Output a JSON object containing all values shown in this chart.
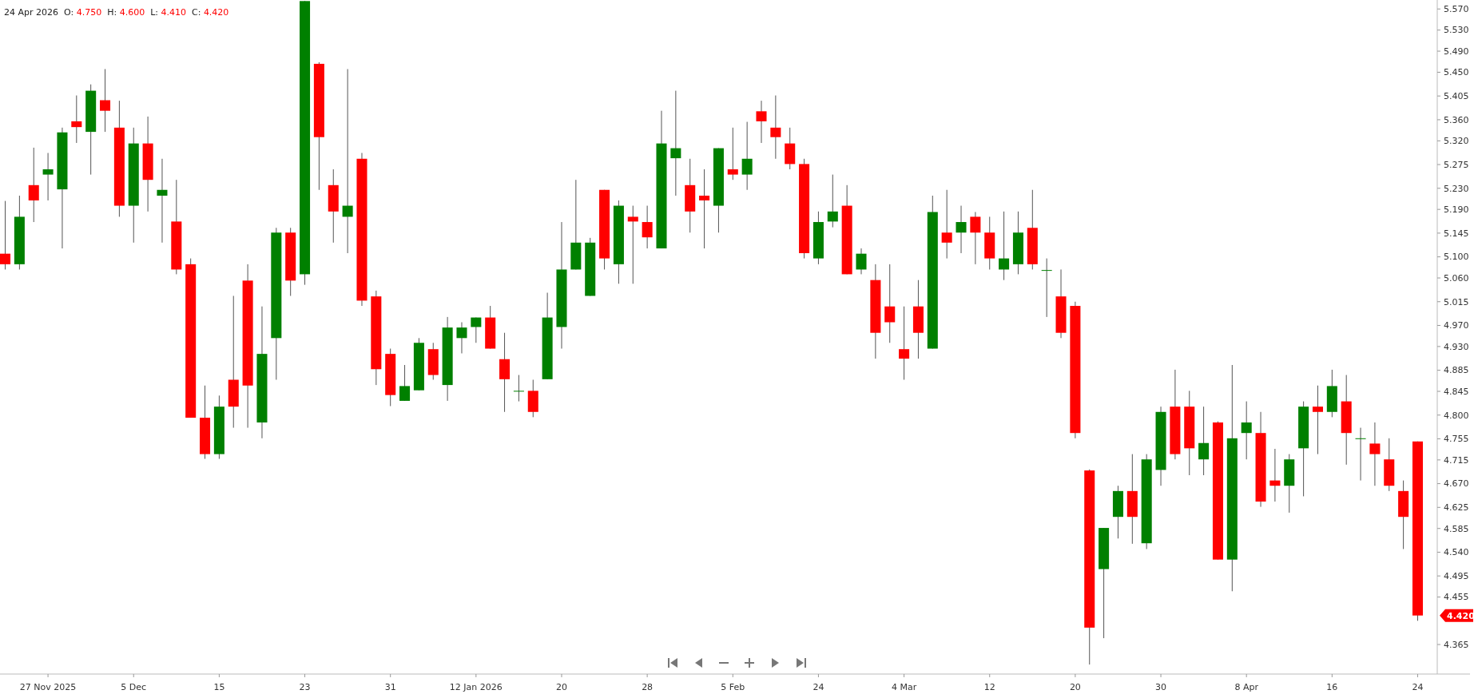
{
  "chart_data": {
    "type": "candlestick",
    "title": "24 Apr 2026  O: 4.750  H: 4.600  L: 4.410  C: 4.420",
    "categories": [
      null,
      null,
      null,
      "27 Nov 2025",
      null,
      null,
      null,
      null,
      null,
      "5 Dec",
      null,
      null,
      null,
      null,
      null,
      "15",
      null,
      null,
      null,
      null,
      null,
      "23",
      null,
      null,
      null,
      null,
      null,
      "31",
      null,
      null,
      null,
      null,
      null,
      "12 Jan 2026",
      null,
      null,
      null,
      null,
      null,
      "20",
      null,
      null,
      null,
      null,
      null,
      "28",
      null,
      null,
      null,
      null,
      null,
      "5 Feb",
      null,
      null,
      null,
      null,
      null,
      "24",
      null,
      null,
      null,
      null,
      null,
      "4 Mar",
      null,
      null,
      null,
      null,
      null,
      "12",
      null,
      null,
      null,
      null,
      null,
      "20",
      null,
      null,
      null,
      null,
      null,
      "30",
      null,
      null,
      null,
      null,
      null,
      "8 Apr",
      null,
      null,
      null,
      null,
      null,
      "16",
      null,
      null,
      null,
      null,
      null,
      "24"
    ],
    "ohlc": [
      [
        5.106,
        5.206,
        5.076,
        5.086
      ],
      [
        5.086,
        5.216,
        5.076,
        5.176
      ],
      [
        5.236,
        5.307,
        5.166,
        5.207
      ],
      [
        5.256,
        5.297,
        5.207,
        5.266
      ],
      [
        5.228,
        5.345,
        5.116,
        5.336
      ],
      [
        5.357,
        5.406,
        5.316,
        5.346
      ],
      [
        5.337,
        5.427,
        5.256,
        5.415
      ],
      [
        5.397,
        5.456,
        5.337,
        5.377
      ],
      [
        5.345,
        5.396,
        5.176,
        5.197
      ],
      [
        5.197,
        5.345,
        5.127,
        5.315
      ],
      [
        5.315,
        5.366,
        5.186,
        5.246
      ],
      [
        5.216,
        5.286,
        5.127,
        5.227
      ],
      [
        5.167,
        5.246,
        5.067,
        5.076
      ],
      [
        5.086,
        5.097,
        4.795,
        4.795
      ],
      [
        4.795,
        4.856,
        4.717,
        4.726
      ],
      [
        4.726,
        4.837,
        4.717,
        4.816
      ],
      [
        4.867,
        5.026,
        4.776,
        4.816
      ],
      [
        5.055,
        5.086,
        4.776,
        4.856
      ],
      [
        4.786,
        5.006,
        4.756,
        4.916
      ],
      [
        4.946,
        5.155,
        4.867,
        5.146
      ],
      [
        5.146,
        5.155,
        5.026,
        5.055
      ],
      [
        5.067,
        5.585,
        5.047,
        5.585
      ],
      [
        5.466,
        5.469,
        5.227,
        5.327
      ],
      [
        5.236,
        5.266,
        5.127,
        5.186
      ],
      [
        5.176,
        5.456,
        5.107,
        5.197
      ],
      [
        5.286,
        5.297,
        5.007,
        5.017
      ],
      [
        5.025,
        5.036,
        4.857,
        4.887
      ],
      [
        4.916,
        4.926,
        4.817,
        4.838
      ],
      [
        4.827,
        4.895,
        4.827,
        4.855
      ],
      [
        4.847,
        4.946,
        4.847,
        4.937
      ],
      [
        4.925,
        4.937,
        4.867,
        4.876
      ],
      [
        4.857,
        4.986,
        4.827,
        4.966
      ],
      [
        4.946,
        4.976,
        4.917,
        4.966
      ],
      [
        4.967,
        4.985,
        4.937,
        4.985
      ],
      [
        4.985,
        5.007,
        4.926,
        4.926
      ],
      [
        4.906,
        4.956,
        4.806,
        4.868
      ],
      [
        4.846,
        4.876,
        4.826,
        4.846
      ],
      [
        4.846,
        4.867,
        4.796,
        4.806
      ],
      [
        4.868,
        5.032,
        4.868,
        4.985
      ],
      [
        4.967,
        5.166,
        4.926,
        5.076
      ],
      [
        5.076,
        5.246,
        5.076,
        5.127
      ],
      [
        5.026,
        5.136,
        5.026,
        5.127
      ],
      [
        5.227,
        5.227,
        5.076,
        5.097
      ],
      [
        5.086,
        5.207,
        5.049,
        5.197
      ],
      [
        5.176,
        5.197,
        5.049,
        5.167
      ],
      [
        5.166,
        5.197,
        5.116,
        5.137
      ],
      [
        5.116,
        5.377,
        5.116,
        5.315
      ],
      [
        5.287,
        5.415,
        5.216,
        5.306
      ],
      [
        5.236,
        5.286,
        5.146,
        5.186
      ],
      [
        5.216,
        5.266,
        5.116,
        5.207
      ],
      [
        5.197,
        5.306,
        5.146,
        5.306
      ],
      [
        5.266,
        5.345,
        5.246,
        5.256
      ],
      [
        5.256,
        5.356,
        5.227,
        5.286
      ],
      [
        5.376,
        5.396,
        5.316,
        5.357
      ],
      [
        5.345,
        5.406,
        5.286,
        5.327
      ],
      [
        5.315,
        5.345,
        5.266,
        5.276
      ],
      [
        5.276,
        5.286,
        5.097,
        5.107
      ],
      [
        5.097,
        5.186,
        5.086,
        5.166
      ],
      [
        5.167,
        5.256,
        5.156,
        5.186
      ],
      [
        5.197,
        5.236,
        5.067,
        5.067
      ],
      [
        5.076,
        5.116,
        5.067,
        5.106
      ],
      [
        5.056,
        5.086,
        4.907,
        4.956
      ],
      [
        5.006,
        5.086,
        4.937,
        4.976
      ],
      [
        4.925,
        5.006,
        4.867,
        4.907
      ],
      [
        5.006,
        5.056,
        4.907,
        4.956
      ],
      [
        4.926,
        5.216,
        4.926,
        5.185
      ],
      [
        5.146,
        5.227,
        5.097,
        5.127
      ],
      [
        5.146,
        5.197,
        5.107,
        5.166
      ],
      [
        5.176,
        5.185,
        5.086,
        5.146
      ],
      [
        5.146,
        5.176,
        5.076,
        5.097
      ],
      [
        5.076,
        5.186,
        5.056,
        5.097
      ],
      [
        5.086,
        5.186,
        5.067,
        5.146
      ],
      [
        5.155,
        5.227,
        5.076,
        5.086
      ],
      [
        5.075,
        5.097,
        4.986,
        5.075
      ],
      [
        5.025,
        5.076,
        4.946,
        4.956
      ],
      [
        5.007,
        5.015,
        4.756,
        4.766
      ],
      [
        4.695,
        4.697,
        4.327,
        4.397
      ],
      [
        4.508,
        4.586,
        4.377,
        4.586
      ],
      [
        4.607,
        4.666,
        4.566,
        4.656
      ],
      [
        4.656,
        4.726,
        4.556,
        4.607
      ],
      [
        4.557,
        4.726,
        4.546,
        4.716
      ],
      [
        4.696,
        4.816,
        4.666,
        4.806
      ],
      [
        4.816,
        4.886,
        4.716,
        4.726
      ],
      [
        4.816,
        4.846,
        4.686,
        4.737
      ],
      [
        4.716,
        4.816,
        4.686,
        4.747
      ],
      [
        4.786,
        4.788,
        4.526,
        4.526
      ],
      [
        4.526,
        4.895,
        4.466,
        4.756
      ],
      [
        4.766,
        4.826,
        4.716,
        4.786
      ],
      [
        4.766,
        4.806,
        4.626,
        4.636
      ],
      [
        4.676,
        4.736,
        4.636,
        4.666
      ],
      [
        4.666,
        4.726,
        4.615,
        4.716
      ],
      [
        4.737,
        4.826,
        4.646,
        4.816
      ],
      [
        4.816,
        4.856,
        4.726,
        4.806
      ],
      [
        4.806,
        4.886,
        4.796,
        4.855
      ],
      [
        4.826,
        4.876,
        4.706,
        4.766
      ],
      [
        4.756,
        4.776,
        4.676,
        4.756
      ],
      [
        4.746,
        4.786,
        4.666,
        4.726
      ],
      [
        4.716,
        4.756,
        4.656,
        4.666
      ],
      [
        4.656,
        4.676,
        4.546,
        4.607
      ],
      [
        4.75,
        4.75,
        4.41,
        4.42
      ]
    ],
    "colors": [
      "#ff0000",
      "#008000",
      "#ff0000",
      "#008000",
      "#008000",
      "#ff0000",
      "#008000",
      "#ff0000",
      "#ff0000",
      "#008000",
      "#ff0000",
      "#008000",
      "#ff0000",
      "#ff0000",
      "#ff0000",
      "#008000",
      "#ff0000",
      "#ff0000",
      "#008000",
      "#008000",
      "#ff0000",
      "#008000",
      "#ff0000",
      "#ff0000",
      "#008000",
      "#ff0000",
      "#ff0000",
      "#ff0000",
      "#008000",
      "#008000",
      "#ff0000",
      "#008000",
      "#008000",
      "#008000",
      "#ff0000",
      "#ff0000",
      "#008000",
      "#ff0000",
      "#008000",
      "#008000",
      "#008000",
      "#008000",
      "#ff0000",
      "#008000",
      "#ff0000",
      "#ff0000",
      "#008000",
      "#008000",
      "#ff0000",
      "#ff0000",
      "#008000",
      "#ff0000",
      "#008000",
      "#ff0000",
      "#ff0000",
      "#ff0000",
      "#ff0000",
      "#008000",
      "#008000",
      "#ff0000",
      "#008000",
      "#ff0000",
      "#ff0000",
      "#ff0000",
      "#ff0000",
      "#008000",
      "#ff0000",
      "#008000",
      "#ff0000",
      "#ff0000",
      "#008000",
      "#008000",
      "#ff0000",
      "#008000",
      "#ff0000",
      "#ff0000",
      "#ff0000",
      "#008000",
      "#008000",
      "#ff0000",
      "#008000",
      "#008000",
      "#ff0000",
      "#ff0000",
      "#008000",
      "#ff0000",
      "#008000",
      "#008000",
      "#ff0000",
      "#ff0000",
      "#008000",
      "#008000",
      "#ff0000",
      "#008000",
      "#ff0000",
      "#008000",
      "#ff0000",
      "#ff0000",
      "#ff0000",
      "#ff0000"
    ],
    "ylim": [
      4.309,
      5.587
    ],
    "yticks": [
      {
        "value": 5.57,
        "label": "5.570"
      },
      {
        "value": 5.53,
        "label": "5.530"
      },
      {
        "value": 5.49,
        "label": "5.490"
      },
      {
        "value": 5.45,
        "label": "5.450"
      },
      {
        "value": 5.405,
        "label": "5.405"
      },
      {
        "value": 5.36,
        "label": "5.360"
      },
      {
        "value": 5.32,
        "label": "5.320"
      },
      {
        "value": 5.275,
        "label": "5.275"
      },
      {
        "value": 5.23,
        "label": "5.230"
      },
      {
        "value": 5.19,
        "label": "5.190"
      },
      {
        "value": 5.145,
        "label": "5.145"
      },
      {
        "value": 5.1,
        "label": "5.100"
      },
      {
        "value": 5.06,
        "label": "5.060"
      },
      {
        "value": 5.015,
        "label": "5.015"
      },
      {
        "value": 4.97,
        "label": "4.970"
      },
      {
        "value": 4.93,
        "label": "4.930"
      },
      {
        "value": 4.885,
        "label": "4.885"
      },
      {
        "value": 4.845,
        "label": "4.845"
      },
      {
        "value": 4.8,
        "label": "4.800"
      },
      {
        "value": 4.755,
        "label": "4.755"
      },
      {
        "value": 4.715,
        "label": "4.715"
      },
      {
        "value": 4.67,
        "label": "4.670"
      },
      {
        "value": 4.625,
        "label": "4.625"
      },
      {
        "value": 4.585,
        "label": "4.585"
      },
      {
        "value": 4.54,
        "label": "4.540"
      },
      {
        "value": 4.495,
        "label": "4.495"
      },
      {
        "value": 4.455,
        "label": "4.455"
      },
      {
        "value": 4.365,
        "label": "4.365"
      }
    ],
    "annotations": [
      "4.420"
    ]
  }
}
